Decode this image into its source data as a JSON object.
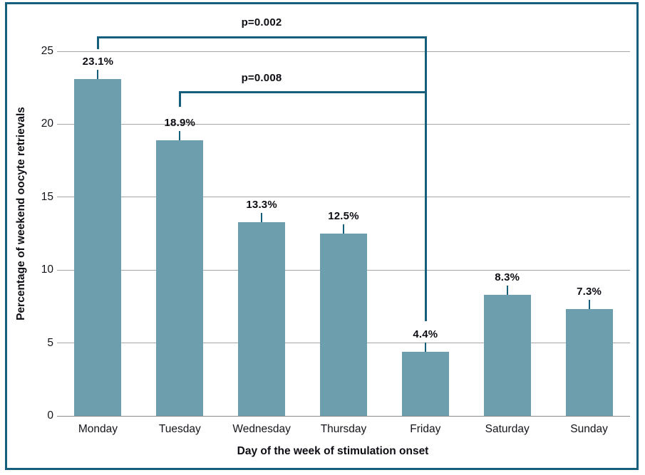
{
  "chart_data": {
    "type": "bar",
    "title": "",
    "xlabel": "Day of the week of stimulation onset",
    "ylabel": "Percentage of weekend oocyte retrievals",
    "categories": [
      "Monday",
      "Tuesday",
      "Wednesday",
      "Thursday",
      "Friday",
      "Saturday",
      "Sunday"
    ],
    "values": [
      23.1,
      18.9,
      13.3,
      12.5,
      4.4,
      8.3,
      7.3
    ],
    "value_labels": [
      "23.1%",
      "18.9%",
      "13.3%",
      "12.5%",
      "4.4%",
      "8.3%",
      "7.3%"
    ],
    "ylim": [
      0,
      25
    ],
    "yticks": [
      0,
      5,
      10,
      15,
      20,
      25
    ],
    "grid": true,
    "legend": "none",
    "error_bars": true,
    "bar_color": "#6d9eae",
    "accent_line_color": "#155e7c",
    "gridline_color": "#a6a6a6",
    "significance_brackets": [
      {
        "label": "p=0.002",
        "from": "Monday",
        "to": "Friday"
      },
      {
        "label": "p=0.008",
        "from": "Tuesday",
        "to": "Friday"
      }
    ]
  }
}
